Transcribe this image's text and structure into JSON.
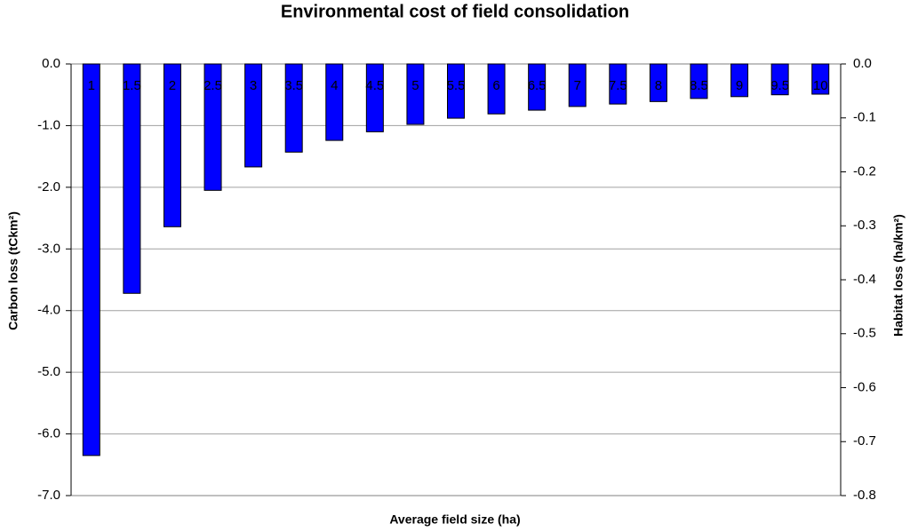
{
  "chart_data": {
    "type": "bar",
    "title": "Environmental cost of field consolidation",
    "x_label": "Average field size (ha)",
    "y_label": "Carbon loss (tCkm²)",
    "y2_label": "Habitat loss (ha/km²)",
    "categories": [
      "1",
      "1.5",
      "2",
      "2.5",
      "3",
      "3.5",
      "4",
      "4.5",
      "5",
      "5.5",
      "6",
      "6.5",
      "7",
      "7.5",
      "8",
      "8.5",
      "9",
      "9.5",
      "10"
    ],
    "values": [
      -6.35,
      -3.72,
      -2.64,
      -2.05,
      -1.67,
      -1.43,
      -1.24,
      -1.1,
      -0.98,
      -0.88,
      -0.81,
      -0.75,
      -0.69,
      -0.65,
      -0.61,
      -0.56,
      -0.53,
      -0.5,
      -0.49
    ],
    "color": "#0000ff",
    "ylim": [
      -7,
      0
    ],
    "yticks": [
      {
        "value": 0,
        "label": "0.0"
      },
      {
        "value": -1,
        "label": "-1.0"
      },
      {
        "value": -2,
        "label": "-2.0"
      },
      {
        "value": -3,
        "label": "-3.0"
      },
      {
        "value": -4,
        "label": "-4.0"
      },
      {
        "value": -5,
        "label": "-5.0"
      },
      {
        "value": -6,
        "label": "-6.0"
      },
      {
        "value": -7,
        "label": "-7.0"
      }
    ],
    "y2lim": [
      -0.8,
      0
    ],
    "y2ticks": [
      {
        "value": 0,
        "label": "0.0"
      },
      -0.1,
      -0.2,
      -0.3,
      -0.4,
      -0.5,
      -0.6,
      -0.7,
      -0.8
    ],
    "grid": true
  }
}
